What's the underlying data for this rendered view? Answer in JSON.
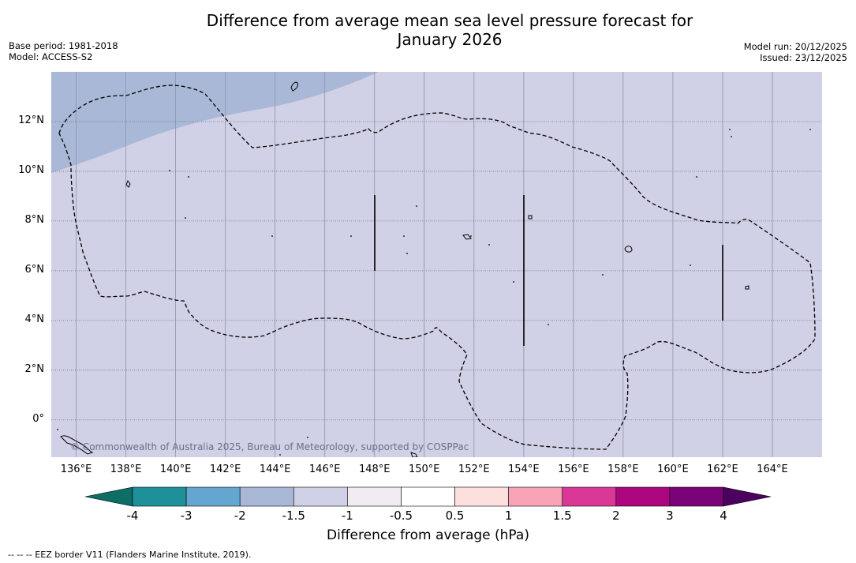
{
  "title_line1": "Difference from average mean sea level pressure forecast for",
  "title_line2": "January 2026",
  "meta_left": {
    "base_period": "Base period: 1981-2018",
    "model": "Model: ACCESS-S2"
  },
  "meta_right": {
    "model_run": "Model run: 20/12/2025",
    "issued": "Issued: 23/12/2025"
  },
  "map": {
    "lon_range": [
      135,
      166
    ],
    "lat_range": [
      -1.5,
      14
    ],
    "x_ticks": [
      136,
      138,
      140,
      142,
      144,
      146,
      148,
      150,
      152,
      154,
      156,
      158,
      160,
      162,
      164
    ],
    "x_tick_labels": [
      "136°E",
      "138°E",
      "140°E",
      "142°E",
      "144°E",
      "146°E",
      "148°E",
      "150°E",
      "152°E",
      "154°E",
      "156°E",
      "158°E",
      "160°E",
      "162°E",
      "164°E"
    ],
    "y_ticks": [
      12,
      10,
      8,
      6,
      4,
      2,
      0
    ],
    "y_tick_labels": [
      "12°N",
      "10°N",
      "8°N",
      "6°N",
      "4°N",
      "2°N",
      "0°"
    ],
    "background_color": "#d0d0e6",
    "anomaly_region_color": "#a9b8d6",
    "copyright": "© Commonwealth of Australia 2025, Bureau of Meteorology, supported by COSPPac"
  },
  "colorbar": {
    "bins": [
      {
        "color": "#1e9099"
      },
      {
        "color": "#64a6d0"
      },
      {
        "color": "#a9b8d6"
      },
      {
        "color": "#d0d0e6"
      },
      {
        "color": "#f0ecf2"
      },
      {
        "color": "#ffffff"
      },
      {
        "color": "#fde0de"
      },
      {
        "color": "#f8a3b8"
      },
      {
        "color": "#da3897"
      },
      {
        "color": "#ab067e"
      },
      {
        "color": "#7a0477"
      }
    ],
    "low_extend_color": "#0c6e65",
    "high_extend_color": "#4d015f",
    "tick_labels": [
      "-4",
      "-3",
      "-2",
      "-1.5",
      "-1",
      "-0.5",
      "0.5",
      "1",
      "1.5",
      "2",
      "3",
      "4"
    ],
    "title": "Difference from average (hPa)"
  },
  "footnote": "--  --  -- EEZ border V11 (Flanders Marine Institute, 2019)."
}
